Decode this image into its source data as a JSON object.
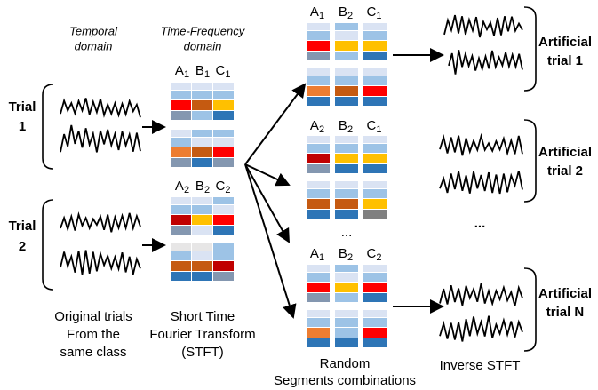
{
  "header": {
    "temporal": [
      "Temporal",
      "domain"
    ],
    "time_frequency": [
      "Time-Frequency",
      "domain"
    ]
  },
  "trials": [
    {
      "label": [
        "Trial",
        "1"
      ],
      "stft_labels": [
        {
          "base": "A",
          "sub": "1"
        },
        {
          "base": "B",
          "sub": "1"
        },
        {
          "base": "C",
          "sub": "1"
        }
      ]
    },
    {
      "label": [
        "Trial",
        "2"
      ],
      "stft_labels": [
        {
          "base": "A",
          "sub": "2"
        },
        {
          "base": "B",
          "sub": "2"
        },
        {
          "base": "C",
          "sub": "2"
        }
      ]
    }
  ],
  "combinations": [
    {
      "labels": [
        {
          "base": "A",
          "sub": "1"
        },
        {
          "base": "B",
          "sub": "2"
        },
        {
          "base": "C",
          "sub": "1"
        }
      ]
    },
    {
      "labels": [
        {
          "base": "A",
          "sub": "2"
        },
        {
          "base": "B",
          "sub": "2"
        },
        {
          "base": "C",
          "sub": "1"
        }
      ]
    },
    {
      "labels": [
        {
          "base": "A",
          "sub": "1"
        },
        {
          "base": "B",
          "sub": "2"
        },
        {
          "base": "C",
          "sub": "2"
        }
      ]
    }
  ],
  "combinations_ellipsis": "...",
  "artificial": [
    [
      "Artificial",
      "trial 1"
    ],
    [
      "Artificial",
      "trial 2"
    ],
    [
      "Artificial",
      "trial N"
    ]
  ],
  "artificial_ellipsis": "...",
  "captions": {
    "original": [
      "Original trials",
      "From the",
      "same class"
    ],
    "stft": [
      "Short Time",
      "Fourier Transform",
      "(STFT)"
    ],
    "random": [
      "Random",
      "Segments combinations"
    ],
    "inverse": "Inverse STFT"
  }
}
